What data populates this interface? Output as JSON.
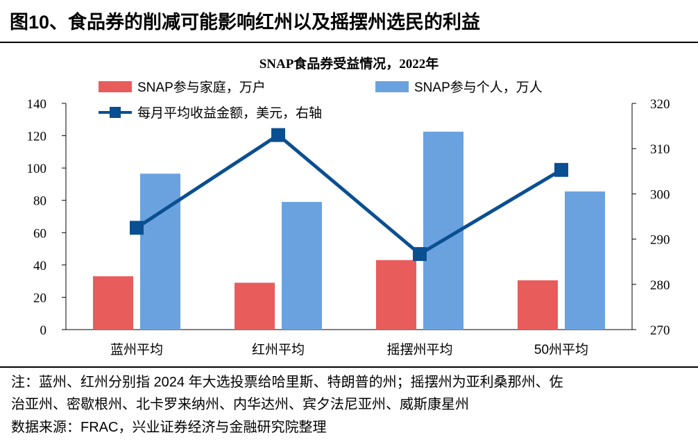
{
  "figure_title": "图10、食品券的削减可能影响红州以及摇摆州选民的利益",
  "chart_data": {
    "type": "bar",
    "title": "SNAP食品券受益情况，2022年",
    "categories": [
      "蓝州平均",
      "红州平均",
      "摇摆州平均",
      "50州平均"
    ],
    "series": [
      {
        "name": "SNAP参与家庭，万户",
        "kind": "bar",
        "axis": "left",
        "color": "#e85c5c",
        "values": [
          33,
          29,
          43,
          30.5
        ]
      },
      {
        "name": "SNAP参与个人，万人",
        "kind": "bar",
        "axis": "left",
        "color": "#6aa2e0",
        "values": [
          96.5,
          79,
          122.5,
          85.5
        ]
      },
      {
        "name": "每月平均收益金额，美元，右轴",
        "kind": "line",
        "axis": "right",
        "color": "#0a4f91",
        "values": [
          292.5,
          313,
          286.7,
          305.3
        ]
      }
    ],
    "y_left": {
      "min": 0,
      "max": 140,
      "step": 20,
      "ticks": [
        "0",
        "20",
        "40",
        "60",
        "80",
        "100",
        "120",
        "140"
      ]
    },
    "y_right": {
      "min": 270,
      "max": 320,
      "step": 10,
      "ticks": [
        "270",
        "280",
        "290",
        "300",
        "310",
        "320"
      ]
    },
    "legend_position": "top"
  },
  "notes": {
    "line1": "注：蓝州、红州分别指 2024 年大选投票给哈里斯、特朗普的州；摇摆州为亚利桑那州、佐",
    "line2": "治亚州、密歇根州、北卡罗来纳州、内华达州、宾夕法尼亚州、威斯康星州",
    "source": "数据来源：FRAC，兴业证券经济与金融研究院整理"
  }
}
